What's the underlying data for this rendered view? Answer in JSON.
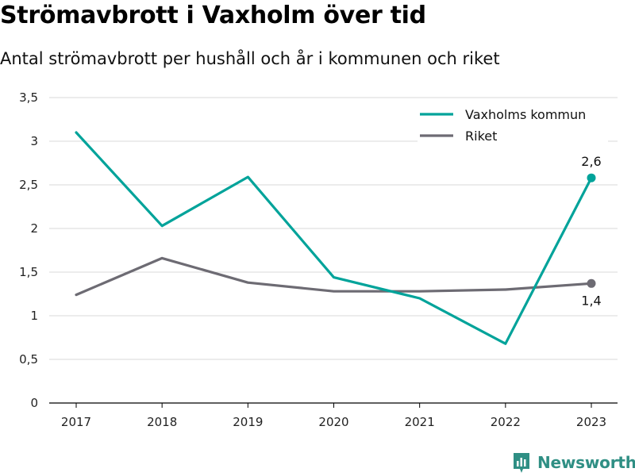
{
  "title": "Strömavbrott i Vaxholm över tid",
  "subtitle": "Antal strömavbrott per hushåll och år i kommunen och riket",
  "brand": {
    "name": "Newsworthy",
    "icon": "newsworthy-logo-icon"
  },
  "colors": {
    "vaxholm": "#00a39a",
    "riket": "#6d6b73",
    "grid": "#d9d9d9",
    "axis": "#000000",
    "brand": "#2f8f84"
  },
  "chart_data": {
    "type": "line",
    "title": "Strömavbrott i Vaxholm över tid",
    "subtitle": "Antal strömavbrott per hushåll och år i kommunen och riket",
    "xlabel": "",
    "ylabel": "",
    "x": [
      "2017",
      "2018",
      "2019",
      "2020",
      "2021",
      "2022",
      "2023"
    ],
    "ylim": [
      0,
      3.5
    ],
    "yticks": [
      0,
      0.5,
      1,
      1.5,
      2,
      2.5,
      3,
      3.5
    ],
    "ytick_labels": [
      "0",
      "0,5",
      "1",
      "1,5",
      "2",
      "2,5",
      "3",
      "3,5"
    ],
    "grid": true,
    "legend_position": "top-right",
    "series": [
      {
        "name": "Vaxholms kommun",
        "color": "#00a39a",
        "values": [
          3.1,
          2.03,
          2.59,
          1.44,
          1.2,
          0.68,
          2.58
        ],
        "end_label": "2,6",
        "end_label_position": "above"
      },
      {
        "name": "Riket",
        "color": "#6d6b73",
        "values": [
          1.24,
          1.66,
          1.38,
          1.28,
          1.28,
          1.3,
          1.37
        ],
        "end_label": "1,4",
        "end_label_position": "below"
      }
    ]
  }
}
